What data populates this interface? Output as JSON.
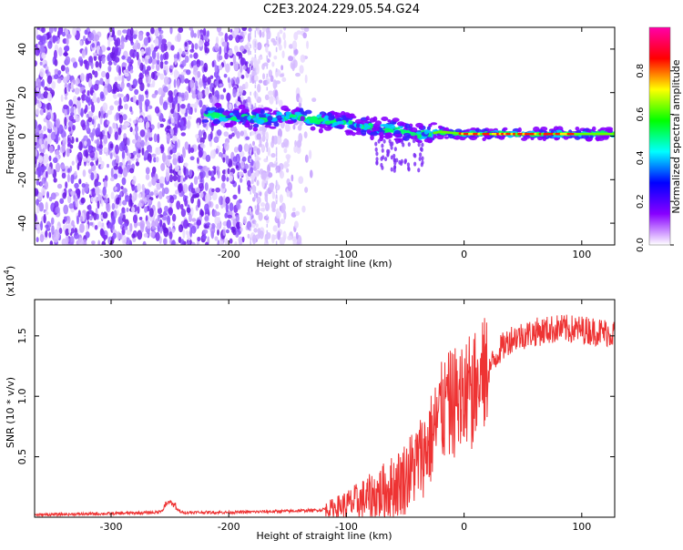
{
  "page": {
    "title": "C2E3.2024.229.05.54.G24"
  },
  "chart_data": [
    {
      "type": "heatmap",
      "xlabel": "Height of straight line (km)",
      "ylabel": "Frequency (Hz)",
      "xlim": [
        -365,
        128
      ],
      "ylim": [
        -50,
        50
      ],
      "xticks": [
        -300,
        -200,
        -100,
        0,
        100
      ],
      "yticks": [
        -40,
        -20,
        0,
        20,
        40
      ],
      "xtick_labels": [
        "-300",
        "-200",
        "-100",
        "0",
        "100"
      ],
      "ytick_labels": [
        "-40",
        "-20",
        "0",
        "20",
        "40"
      ],
      "colorbar": {
        "label": "Normalized spectral amplitude",
        "range": [
          0,
          1
        ],
        "ticks": [
          0,
          0.2,
          0.4,
          0.6,
          0.8
        ],
        "tick_labels": [
          "0.0",
          "0.2",
          "0.4",
          "0.6",
          "0.8"
        ],
        "colors": [
          "#ffffff",
          "#8800ff",
          "#0000ff",
          "#00ffff",
          "#00ff00",
          "#ffff00",
          "#ff0000",
          "#ff00aa"
        ]
      },
      "ridge": {
        "x": [
          -220,
          -180,
          -140,
          -120,
          -100,
          -80,
          -60,
          -40,
          -30,
          -20,
          0,
          40,
          80,
          128
        ],
        "y": [
          10,
          8,
          9,
          7,
          6,
          4,
          3,
          1,
          1,
          2,
          1,
          1,
          1,
          1
        ]
      },
      "noise_region_x": [
        -365,
        -150
      ]
    },
    {
      "type": "line",
      "xlabel": "Height of straight line (km)",
      "ylabel": "SNR (10 * v/v)",
      "multiplier": "(x10",
      "multiplier_exp": "4",
      "multiplier_close": ")",
      "xlim": [
        -365,
        128
      ],
      "ylim": [
        0,
        1.8
      ],
      "xticks": [
        -300,
        -200,
        -100,
        0,
        100
      ],
      "yticks": [
        0.5,
        1.0,
        1.5
      ],
      "xtick_labels": [
        "-300",
        "-200",
        "-100",
        "0",
        "100"
      ],
      "ytick_labels": [
        "0.5",
        "1.0",
        "1.5"
      ],
      "color": "#ee3333",
      "series": [
        {
          "x": [
            -365,
            -300,
            -260,
            -250,
            -240,
            -200,
            -150,
            -120,
            -100,
            -80,
            -60,
            -50,
            -40,
            -30,
            -20,
            -10,
            0,
            10,
            20,
            30,
            40,
            60,
            80,
            100,
            128
          ],
          "y": [
            0.02,
            0.03,
            0.04,
            0.1,
            0.04,
            0.04,
            0.05,
            0.06,
            0.1,
            0.16,
            0.25,
            0.33,
            0.45,
            0.6,
            0.85,
            0.95,
            0.98,
            1.05,
            1.2,
            1.38,
            1.48,
            1.53,
            1.56,
            1.55,
            1.52
          ]
        }
      ]
    }
  ]
}
